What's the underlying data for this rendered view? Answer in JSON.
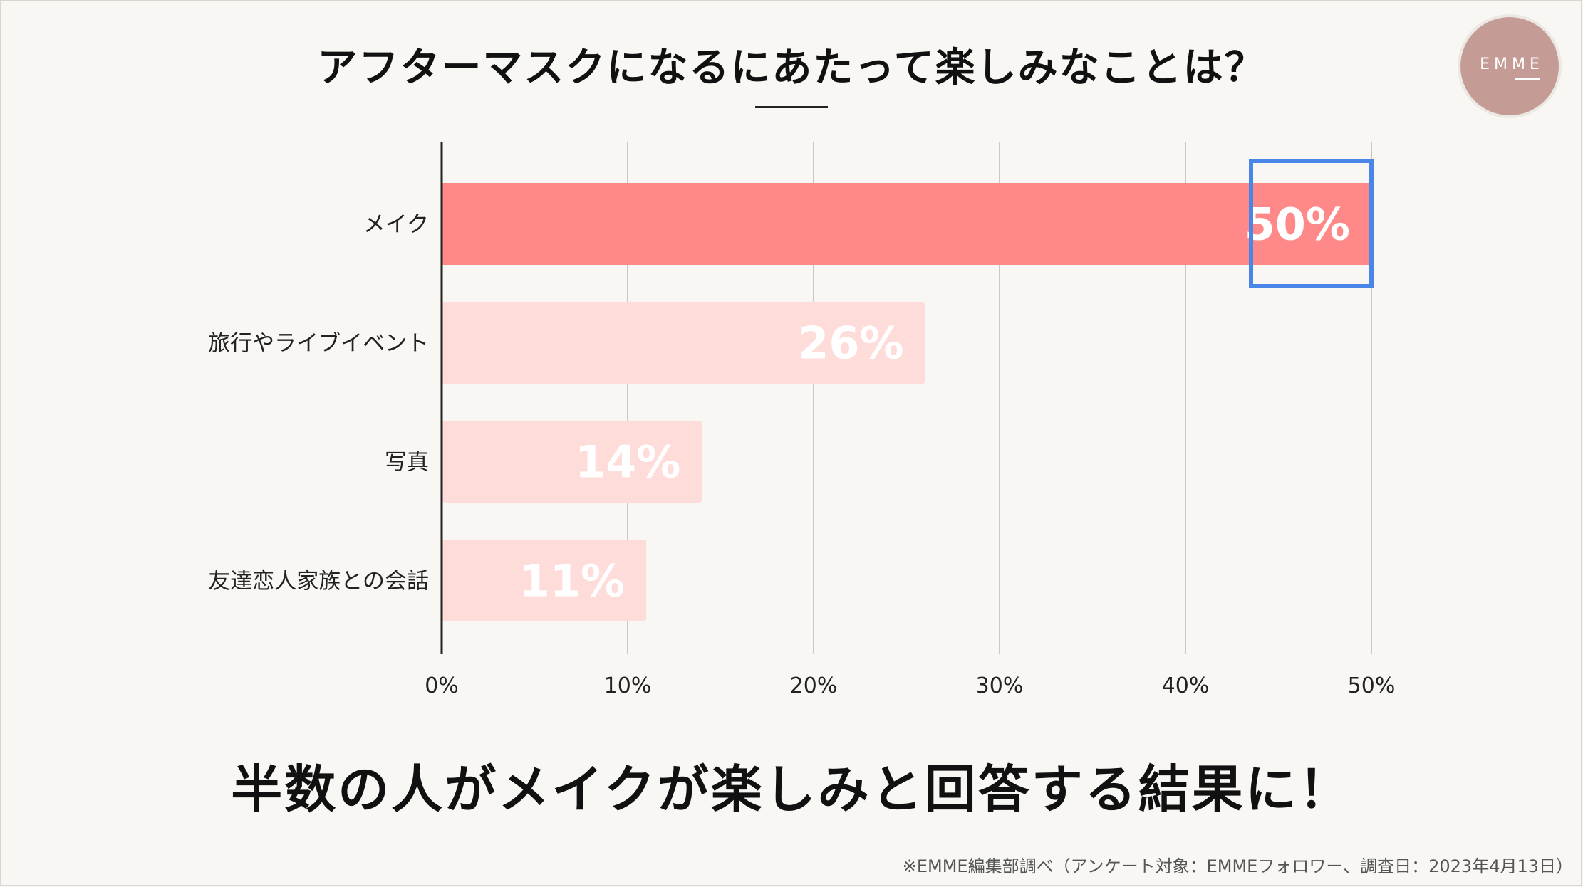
{
  "header": {
    "title": "アフターマスクになるにあたって楽しみなことは？"
  },
  "logo": {
    "text": "EMME"
  },
  "conclusion": "半数の人がメイクが楽しみと回答する結果に！",
  "footnote": "※EMME編集部調べ（アンケート対象：EMMEフォロワー、調査日：2023年4月13日）",
  "chart_data": {
    "type": "bar",
    "orientation": "horizontal",
    "categories": [
      "メイク",
      "旅行やライブイベント",
      "写真",
      "友達恋人家族との会話"
    ],
    "values": [
      50,
      26,
      14,
      11
    ],
    "data_labels": [
      "50%",
      "26%",
      "14%",
      "11%"
    ],
    "xlim": [
      0,
      50
    ],
    "xticks": [
      "0%",
      "10%",
      "20%",
      "30%",
      "40%",
      "50%"
    ],
    "grid": true,
    "highlight_index": 0,
    "colors": {
      "highlight_bar": "#ff8888",
      "bar": "#fddcda",
      "label": "#ffffff",
      "highlight_box": "#4a86e8",
      "grid": "#c8c8c8",
      "axis": "#222222"
    }
  }
}
